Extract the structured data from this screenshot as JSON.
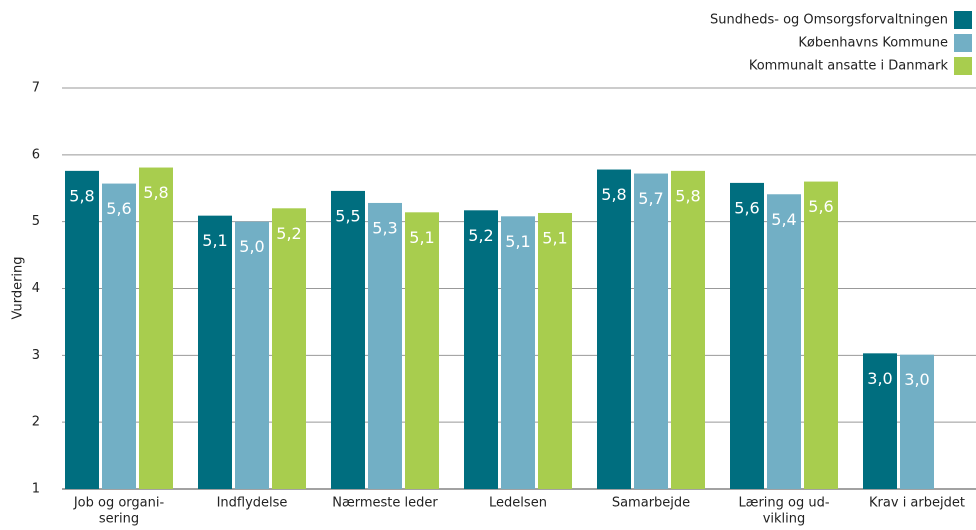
{
  "chart_data": {
    "type": "bar",
    "y_label": "Vurdering",
    "categories": [
      [
        "Job og organi-",
        "sering"
      ],
      [
        "Indflydelse"
      ],
      [
        "Nærmeste leder"
      ],
      [
        "Ledelsen"
      ],
      [
        "Samarbejde"
      ],
      [
        "Læring og ud-",
        "vikling"
      ],
      [
        "Krav i arbejdet"
      ]
    ],
    "series": [
      {
        "name": "Sundheds- og Omsorgsforvaltningen",
        "color": "#006e7f",
        "values": [
          5.76,
          5.09,
          5.46,
          5.17,
          5.78,
          5.58,
          3.03
        ],
        "value_labels": [
          "5,8",
          "5,1",
          "5,5",
          "5,2",
          "5,8",
          "5,6",
          "3,0"
        ]
      },
      {
        "name": "Københavns Kommune",
        "color": "#72afc5",
        "values": [
          5.57,
          5.0,
          5.28,
          5.08,
          5.72,
          5.41,
          3.01
        ],
        "value_labels": [
          "5,6",
          "5,0",
          "5,3",
          "5,1",
          "5,7",
          "5,4",
          "3,0"
        ]
      },
      {
        "name": "Kommunalt ansatte i Danmark",
        "color": "#a8cd4e",
        "values": [
          5.81,
          5.2,
          5.14,
          5.13,
          5.76,
          5.6,
          null
        ],
        "value_labels": [
          "5,8",
          "5,2",
          "5,1",
          "5,1",
          "5,8",
          "5,6",
          null
        ]
      }
    ],
    "ylim": [
      1,
      7
    ],
    "yticks": [
      1,
      2,
      3,
      4,
      5,
      6,
      7
    ],
    "grid": true,
    "legend": "top-right"
  }
}
